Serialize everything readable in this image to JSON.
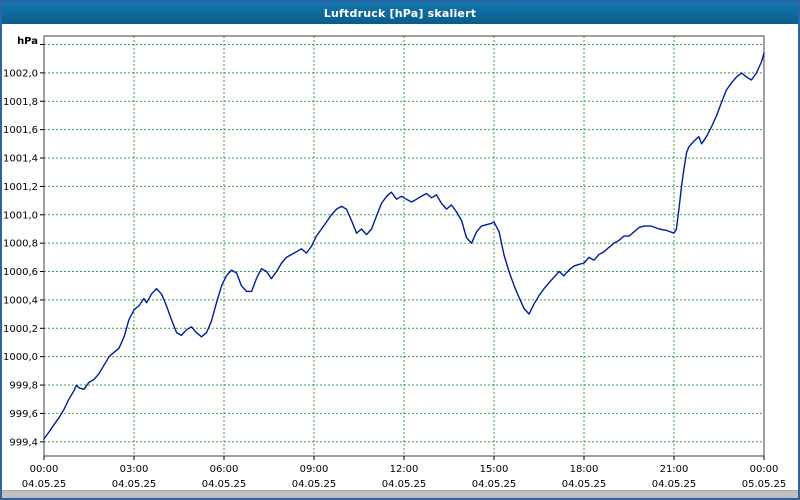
{
  "window": {
    "title": "Luftdruck [hPa] skaliert"
  },
  "chart_data": {
    "type": "line",
    "title": "Luftdruck [hPa] skaliert",
    "ylabel": "hPa",
    "xlabel": "",
    "legend": "none",
    "grid": true,
    "xlim": [
      0,
      24
    ],
    "ylim": [
      999.3,
      1002.26
    ],
    "colors": {
      "titlebar": "#0c6291",
      "border": "#2d64a8",
      "grid": "#3b9b4b",
      "axis": "#000000",
      "plot_border": "#404040",
      "plot_bg": "#ffffff",
      "line": "#001d9e"
    },
    "y_ticks": [
      {
        "v": 999.4,
        "label": "999,4"
      },
      {
        "v": 999.6,
        "label": "999,6"
      },
      {
        "v": 999.8,
        "label": "999,8"
      },
      {
        "v": 1000.0,
        "label": "1000,0"
      },
      {
        "v": 1000.2,
        "label": "1000,2"
      },
      {
        "v": 1000.4,
        "label": "1000,4"
      },
      {
        "v": 1000.6,
        "label": "1000,6"
      },
      {
        "v": 1000.8,
        "label": "1000,8"
      },
      {
        "v": 1001.0,
        "label": "1001,0"
      },
      {
        "v": 1001.2,
        "label": "1001,2"
      },
      {
        "v": 1001.4,
        "label": "1001,4"
      },
      {
        "v": 1001.6,
        "label": "1001,6"
      },
      {
        "v": 1001.8,
        "label": "1001,8"
      },
      {
        "v": 1002.0,
        "label": "1002,0"
      },
      {
        "v": 1002.2,
        "label": ""
      }
    ],
    "x_ticks": [
      {
        "t": 0,
        "time": "00:00",
        "date": "04.05.25"
      },
      {
        "t": 3,
        "time": "03:00",
        "date": "04.05.25"
      },
      {
        "t": 6,
        "time": "06:00",
        "date": "04.05.25"
      },
      {
        "t": 9,
        "time": "09:00",
        "date": "04.05.25"
      },
      {
        "t": 12,
        "time": "12:00",
        "date": "04.05.25"
      },
      {
        "t": 15,
        "time": "15:00",
        "date": "04.05.25"
      },
      {
        "t": 18,
        "time": "18:00",
        "date": "04.05.25"
      },
      {
        "t": 21,
        "time": "21:00",
        "date": "04.05.25"
      },
      {
        "t": 24,
        "time": "00:00",
        "date": "05.05.25"
      }
    ],
    "series": [
      {
        "name": "Luftdruck",
        "color": "#001d9e",
        "points": [
          [
            0.0,
            999.42
          ],
          [
            0.17,
            999.47
          ],
          [
            0.33,
            999.52
          ],
          [
            0.5,
            999.57
          ],
          [
            0.67,
            999.63
          ],
          [
            0.83,
            999.7
          ],
          [
            1.0,
            999.76
          ],
          [
            1.08,
            999.8
          ],
          [
            1.17,
            999.78
          ],
          [
            1.33,
            999.77
          ],
          [
            1.5,
            999.82
          ],
          [
            1.67,
            999.84
          ],
          [
            1.83,
            999.88
          ],
          [
            2.0,
            999.94
          ],
          [
            2.17,
            1000.0
          ],
          [
            2.33,
            1000.03
          ],
          [
            2.5,
            1000.06
          ],
          [
            2.67,
            1000.14
          ],
          [
            2.83,
            1000.26
          ],
          [
            3.0,
            1000.33
          ],
          [
            3.17,
            1000.36
          ],
          [
            3.33,
            1000.41
          ],
          [
            3.42,
            1000.38
          ],
          [
            3.58,
            1000.44
          ],
          [
            3.75,
            1000.48
          ],
          [
            3.92,
            1000.44
          ],
          [
            4.08,
            1000.36
          ],
          [
            4.25,
            1000.26
          ],
          [
            4.42,
            1000.17
          ],
          [
            4.58,
            1000.15
          ],
          [
            4.75,
            1000.19
          ],
          [
            4.92,
            1000.21
          ],
          [
            5.08,
            1000.17
          ],
          [
            5.25,
            1000.14
          ],
          [
            5.42,
            1000.17
          ],
          [
            5.58,
            1000.25
          ],
          [
            5.75,
            1000.38
          ],
          [
            5.92,
            1000.5
          ],
          [
            6.08,
            1000.57
          ],
          [
            6.25,
            1000.61
          ],
          [
            6.42,
            1000.59
          ],
          [
            6.58,
            1000.5
          ],
          [
            6.75,
            1000.46
          ],
          [
            6.92,
            1000.46
          ],
          [
            7.08,
            1000.55
          ],
          [
            7.25,
            1000.62
          ],
          [
            7.42,
            1000.6
          ],
          [
            7.58,
            1000.55
          ],
          [
            7.75,
            1000.6
          ],
          [
            7.92,
            1000.66
          ],
          [
            8.08,
            1000.7
          ],
          [
            8.25,
            1000.72
          ],
          [
            8.42,
            1000.74
          ],
          [
            8.58,
            1000.76
          ],
          [
            8.75,
            1000.73
          ],
          [
            8.92,
            1000.78
          ],
          [
            9.08,
            1000.85
          ],
          [
            9.25,
            1000.9
          ],
          [
            9.42,
            1000.95
          ],
          [
            9.58,
            1001.0
          ],
          [
            9.75,
            1001.04
          ],
          [
            9.92,
            1001.06
          ],
          [
            10.08,
            1001.04
          ],
          [
            10.25,
            1000.96
          ],
          [
            10.42,
            1000.87
          ],
          [
            10.58,
            1000.9
          ],
          [
            10.75,
            1000.86
          ],
          [
            10.92,
            1000.9
          ],
          [
            11.08,
            1000.99
          ],
          [
            11.25,
            1001.08
          ],
          [
            11.42,
            1001.13
          ],
          [
            11.58,
            1001.16
          ],
          [
            11.75,
            1001.11
          ],
          [
            11.92,
            1001.13
          ],
          [
            12.08,
            1001.11
          ],
          [
            12.25,
            1001.09
          ],
          [
            12.42,
            1001.11
          ],
          [
            12.58,
            1001.13
          ],
          [
            12.75,
            1001.15
          ],
          [
            12.92,
            1001.12
          ],
          [
            13.08,
            1001.14
          ],
          [
            13.25,
            1001.08
          ],
          [
            13.42,
            1001.04
          ],
          [
            13.58,
            1001.07
          ],
          [
            13.75,
            1001.02
          ],
          [
            13.92,
            1000.96
          ],
          [
            14.08,
            1000.84
          ],
          [
            14.25,
            1000.8
          ],
          [
            14.42,
            1000.88
          ],
          [
            14.58,
            1000.92
          ],
          [
            14.75,
            1000.93
          ],
          [
            14.92,
            1000.94
          ],
          [
            15.0,
            1000.95
          ],
          [
            15.17,
            1000.88
          ],
          [
            15.33,
            1000.72
          ],
          [
            15.5,
            1000.6
          ],
          [
            15.67,
            1000.5
          ],
          [
            15.83,
            1000.42
          ],
          [
            16.0,
            1000.34
          ],
          [
            16.17,
            1000.3
          ],
          [
            16.33,
            1000.37
          ],
          [
            16.5,
            1000.43
          ],
          [
            16.67,
            1000.48
          ],
          [
            16.83,
            1000.52
          ],
          [
            17.0,
            1000.56
          ],
          [
            17.17,
            1000.6
          ],
          [
            17.33,
            1000.57
          ],
          [
            17.5,
            1000.61
          ],
          [
            17.67,
            1000.64
          ],
          [
            17.83,
            1000.65
          ],
          [
            18.0,
            1000.66
          ],
          [
            18.17,
            1000.7
          ],
          [
            18.33,
            1000.68
          ],
          [
            18.5,
            1000.72
          ],
          [
            18.67,
            1000.74
          ],
          [
            18.83,
            1000.77
          ],
          [
            19.0,
            1000.8
          ],
          [
            19.17,
            1000.82
          ],
          [
            19.33,
            1000.85
          ],
          [
            19.5,
            1000.85
          ],
          [
            19.67,
            1000.88
          ],
          [
            19.83,
            1000.91
          ],
          [
            20.0,
            1000.92
          ],
          [
            20.25,
            1000.92
          ],
          [
            20.5,
            1000.9
          ],
          [
            20.75,
            1000.89
          ],
          [
            21.0,
            1000.87
          ],
          [
            21.08,
            1000.9
          ],
          [
            21.17,
            1001.05
          ],
          [
            21.25,
            1001.2
          ],
          [
            21.33,
            1001.32
          ],
          [
            21.42,
            1001.44
          ],
          [
            21.5,
            1001.48
          ],
          [
            21.67,
            1001.52
          ],
          [
            21.83,
            1001.55
          ],
          [
            21.92,
            1001.5
          ],
          [
            22.08,
            1001.55
          ],
          [
            22.25,
            1001.62
          ],
          [
            22.42,
            1001.7
          ],
          [
            22.58,
            1001.79
          ],
          [
            22.75,
            1001.88
          ],
          [
            22.92,
            1001.93
          ],
          [
            23.08,
            1001.97
          ],
          [
            23.25,
            1002.0
          ],
          [
            23.42,
            1001.97
          ],
          [
            23.58,
            1001.95
          ],
          [
            23.75,
            1002.0
          ],
          [
            23.92,
            1002.08
          ],
          [
            24.0,
            1002.14
          ]
        ]
      }
    ]
  }
}
